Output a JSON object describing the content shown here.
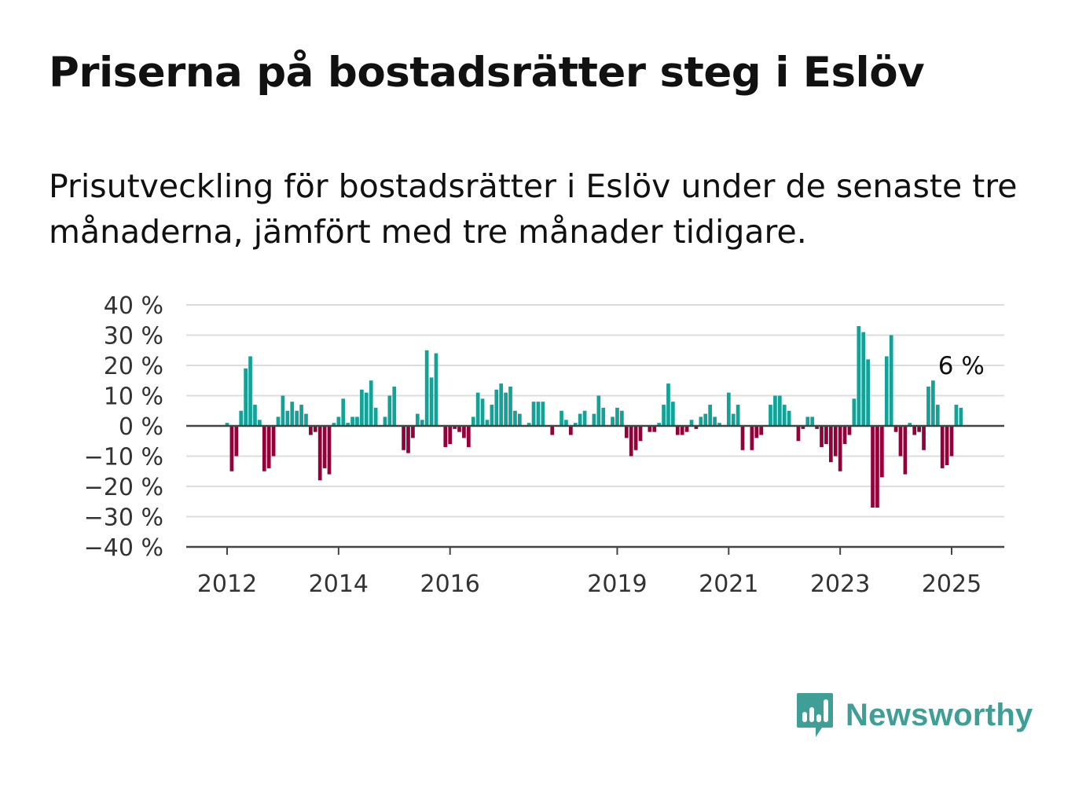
{
  "header": {
    "title": "Priserna på bostadsrätter steg i Eslöv",
    "subtitle": "Prisutveckling för bostadsrätter i Eslöv under de senaste tre månaderna, jämfört med tre månader tidigare."
  },
  "brand": {
    "name": "Newsworthy",
    "color": "#3f9e95"
  },
  "colors": {
    "positive": "#12a297",
    "negative": "#93003a",
    "grid": "#dddddd",
    "zero_line": "#444444"
  },
  "chart_data": {
    "type": "bar",
    "ylim": [
      -40,
      40
    ],
    "y_ticks": [
      40,
      30,
      20,
      10,
      0,
      -10,
      -20,
      -30,
      -40
    ],
    "y_tick_labels": [
      "40 %",
      "30 %",
      "20 %",
      "10 %",
      "0 %",
      "−10 %",
      "−20 %",
      "−30 %",
      "−40 %"
    ],
    "x_tick_labels": [
      "2012",
      "2014",
      "2016",
      "2019",
      "2021",
      "2023",
      "2025"
    ],
    "x_tick_years": [
      2012,
      2014,
      2016,
      2019,
      2021,
      2023,
      2025
    ],
    "x_start": "2012-01",
    "frequency": "monthly",
    "values": [
      1,
      -15,
      -10,
      5,
      19,
      23,
      7,
      2,
      -15,
      -14,
      -10,
      3,
      10,
      5,
      8,
      5,
      7,
      4,
      -3,
      -2,
      -18,
      -14,
      -16,
      1,
      3,
      9,
      1,
      3,
      3,
      12,
      11,
      15,
      6,
      0,
      3,
      10,
      13,
      0,
      -8,
      -9,
      -4,
      4,
      2,
      25,
      16,
      24,
      0,
      -7,
      -6,
      -1,
      -2,
      -4,
      -7,
      3,
      11,
      9,
      2,
      7,
      12,
      14,
      11,
      13,
      5,
      4,
      0,
      1,
      8,
      8,
      8,
      0,
      -3,
      0,
      5,
      2,
      -3,
      1,
      4,
      5,
      0,
      4,
      10,
      6,
      0,
      3,
      6,
      5,
      -4,
      -10,
      -8,
      -5,
      0,
      -2,
      -2,
      1,
      7,
      14,
      8,
      -3,
      -3,
      -2,
      2,
      -1,
      3,
      4,
      7,
      3,
      1,
      0,
      11,
      4,
      7,
      -8,
      0,
      -8,
      -4,
      -3,
      0,
      7,
      10,
      10,
      7,
      5,
      0,
      -5,
      -1,
      3,
      3,
      -1,
      -7,
      -6,
      -12,
      -10,
      -15,
      -6,
      -3,
      9,
      33,
      31,
      22,
      -27,
      -27,
      -17,
      23,
      30,
      -2,
      -10,
      -16,
      1,
      -3,
      -2,
      -8,
      13,
      15,
      7,
      -14,
      -13,
      -10,
      7,
      6
    ],
    "annotation": {
      "text": "6 %",
      "label_for": "last"
    }
  }
}
